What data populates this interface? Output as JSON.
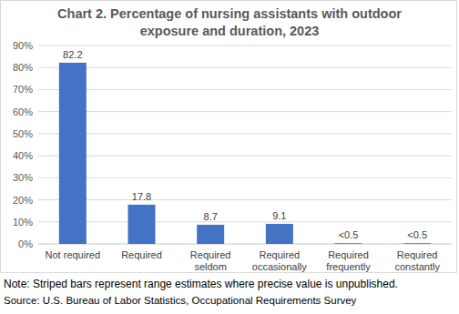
{
  "chart_data": {
    "type": "bar",
    "title": "Chart 2. Percentage of nursing assistants with outdoor exposure and duration, 2023",
    "categories": [
      "Not required",
      "Required",
      "Required seldom",
      "Required occasionally",
      "Required frequently",
      "Required constantly"
    ],
    "values": [
      82.2,
      17.8,
      8.7,
      9.1,
      0.3,
      0.3
    ],
    "value_labels": [
      "82.2",
      "17.8",
      "8.7",
      "9.1",
      "<0.5",
      "<0.5"
    ],
    "color": "#4472c4",
    "ylim": [
      0,
      90
    ],
    "yticks": [
      {
        "value": 0,
        "label": "0%"
      },
      {
        "value": 10,
        "label": "10%"
      },
      {
        "value": 20,
        "label": "20%"
      },
      {
        "value": 30,
        "label": "30%"
      },
      {
        "value": 40,
        "label": "40%"
      },
      {
        "value": 50,
        "label": "50%"
      },
      {
        "value": 60,
        "label": "60%"
      },
      {
        "value": 70,
        "label": "70%"
      },
      {
        "value": 80,
        "label": "80%"
      },
      {
        "value": 90,
        "label": "90%"
      }
    ],
    "grid": true,
    "data_labels": true,
    "note": "Note: Striped bars represent range estimates where precise value is unpublished.",
    "source": "Source: U.S. Bureau of Labor Statistics, Occupational Requirements Survey"
  }
}
